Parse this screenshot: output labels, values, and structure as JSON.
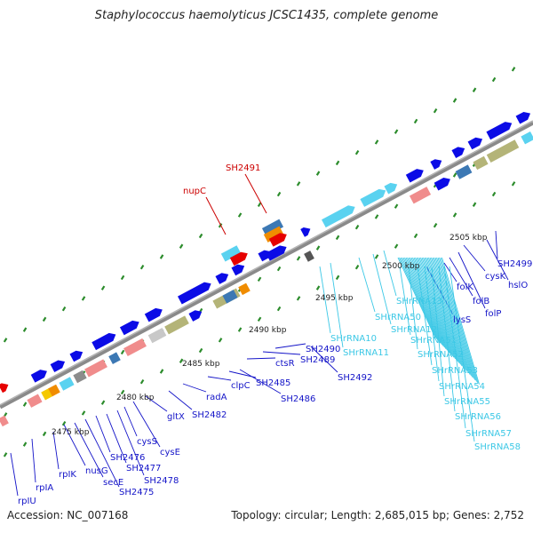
{
  "title": "Staphylococcus haemolyticus JCSC1435, complete genome",
  "accession": "Accession: NC_007168",
  "topology": "Topology: circular; Length: 2,685,015 bp; Genes: 2,752",
  "colors": {
    "forward_gene": "#0b0be6",
    "reverse_gene": "#0b0be6",
    "rrna": "#5ad2f0",
    "ruler_dots": "#2c8c2c",
    "backbone": "#8c8c8c",
    "highlight_label": "#cc0000",
    "gene_label": "#1414c8",
    "rna_label": "#3cc8e6",
    "tick_label": "#222222"
  },
  "ticks": [
    "2475 kbp",
    "2480 kbp",
    "2485 kbp",
    "2490 kbp",
    "2495 kbp",
    "2500 kbp",
    "2505 kbp"
  ],
  "gene_labels": [
    "rpIU",
    "rpIA",
    "rpIK",
    "nusG",
    "secE",
    "SH2475",
    "SH2476",
    "SH2477",
    "SH2478",
    "cysS",
    "cysE",
    "gltX",
    "SH2482",
    "radA",
    "clpC",
    "SH2485",
    "SH2486",
    "ctsR",
    "SH2489",
    "SH2490",
    "SH2492",
    "lysS",
    "folK",
    "folB",
    "folP",
    "cysK",
    "hslO",
    "SH2499"
  ],
  "rna_labels": [
    "SHrRNA10",
    "SHrRNA11",
    "SHrRNA50",
    "SHrRNA12",
    "SHrRNA13",
    "SHrRNA51",
    "SHrRNA52",
    "SHrRNA53",
    "SHrRNA54",
    "SHrRNA55",
    "SHrRNA56",
    "SHrRNA57",
    "SHrRNA58"
  ],
  "highlight_labels": [
    "nupC",
    "SH2491"
  ]
}
